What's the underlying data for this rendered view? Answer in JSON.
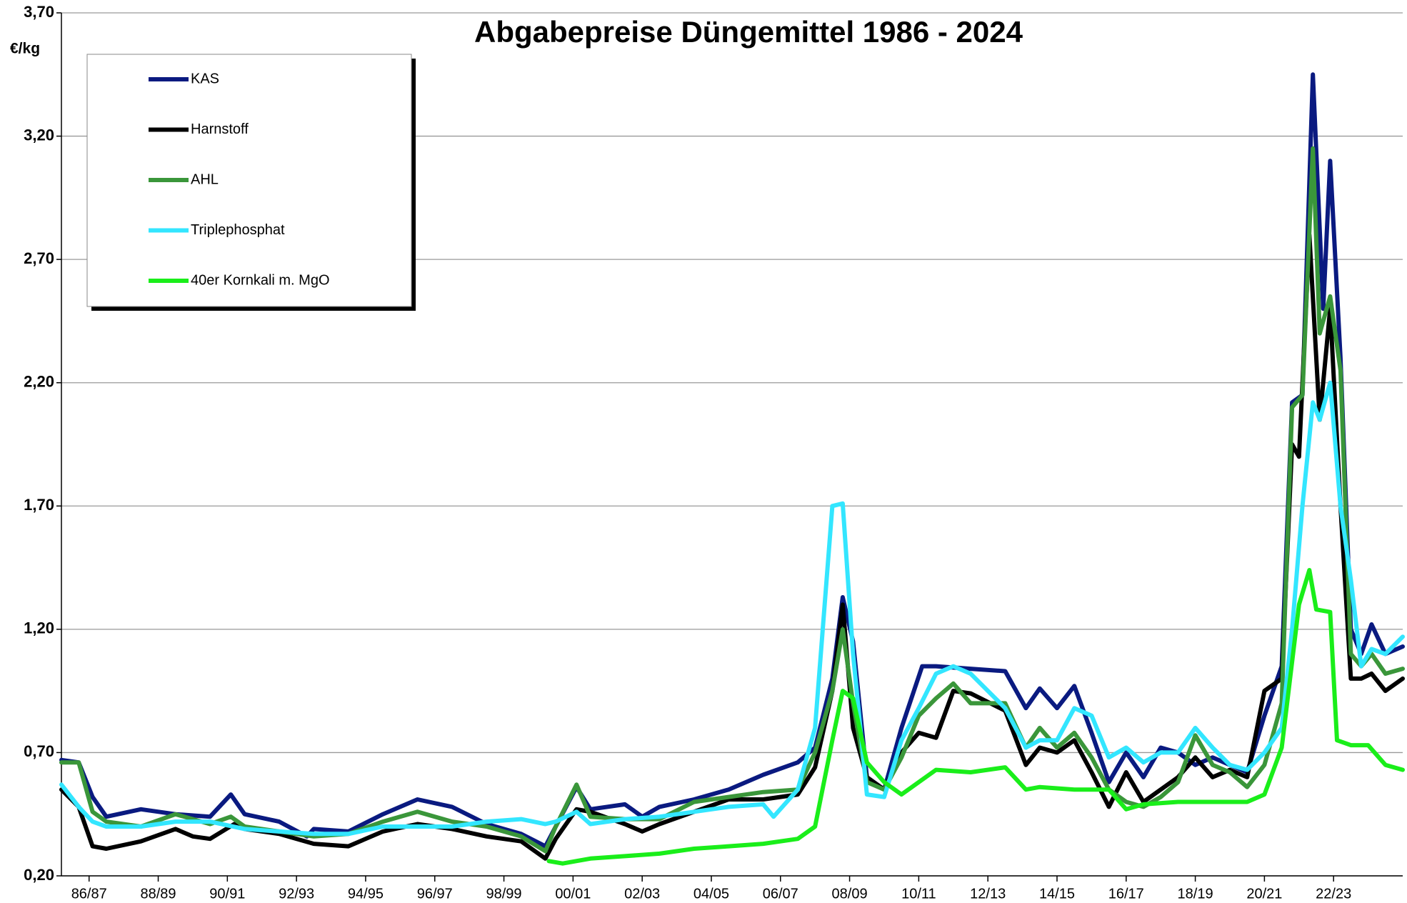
{
  "chart_data": {
    "type": "line",
    "title": "Abgabepreise Düngemittel 1986 - 2024",
    "y_label": "€/kg",
    "xlim": [
      1985.7,
      2024.5
    ],
    "ylim": [
      0.2,
      3.7
    ],
    "yticks": [
      {
        "value": 0.2,
        "label": "0,20"
      },
      {
        "value": 0.7,
        "label": "0,70"
      },
      {
        "value": 1.2,
        "label": "1,20"
      },
      {
        "value": 1.7,
        "label": "1,70"
      },
      {
        "value": 2.2,
        "label": "2,20"
      },
      {
        "value": 2.7,
        "label": "2,70"
      },
      {
        "value": 3.2,
        "label": "3,20"
      },
      {
        "value": 3.7,
        "label": "3,70"
      }
    ],
    "xticks": [
      {
        "value": 1986.5,
        "label": "86/87"
      },
      {
        "value": 1988.5,
        "label": "88/89"
      },
      {
        "value": 1990.5,
        "label": "90/91"
      },
      {
        "value": 1992.5,
        "label": "92/93"
      },
      {
        "value": 1994.5,
        "label": "94/95"
      },
      {
        "value": 1996.5,
        "label": "96/97"
      },
      {
        "value": 1998.5,
        "label": "98/99"
      },
      {
        "value": 2000.5,
        "label": "00/01"
      },
      {
        "value": 2002.5,
        "label": "02/03"
      },
      {
        "value": 2004.5,
        "label": "04/05"
      },
      {
        "value": 2006.5,
        "label": "06/07"
      },
      {
        "value": 2008.5,
        "label": "08/09"
      },
      {
        "value": 2010.5,
        "label": "10/11"
      },
      {
        "value": 2012.5,
        "label": "12/13"
      },
      {
        "value": 2014.5,
        "label": "14/15"
      },
      {
        "value": 2016.5,
        "label": "16/17"
      },
      {
        "value": 2018.5,
        "label": "18/19"
      },
      {
        "value": 2020.5,
        "label": "20/21"
      },
      {
        "value": 2022.5,
        "label": "22/23"
      }
    ],
    "grid": true,
    "legend": "upper left",
    "series": [
      {
        "name": "KAS",
        "color": "#0a1a80",
        "x": [
          1985.7,
          1986.2,
          1986.6,
          1987,
          1988,
          1989,
          1990,
          1990.6,
          1991,
          1992,
          1992.8,
          1993,
          1994,
          1995,
          1996,
          1997,
          1998,
          1999,
          1999.7,
          2000,
          2000.6,
          2001,
          2002,
          2002.5,
          2003,
          2004,
          2005,
          2006,
          2007,
          2007.5,
          2008,
          2008.3,
          2008.6,
          2009,
          2009.5,
          2010,
          2010.6,
          2011,
          2012,
          2013,
          2013.6,
          2014,
          2014.5,
          2015,
          2015.5,
          2016,
          2016.5,
          2017,
          2017.5,
          2018,
          2018.5,
          2019,
          2019.5,
          2020,
          2020.5,
          2021,
          2021.3,
          2021.6,
          2021.9,
          2022.2,
          2022.4,
          2022.7,
          2023,
          2023.3,
          2023.6,
          2024,
          2024.5
        ],
        "values": [
          0.67,
          0.66,
          0.52,
          0.44,
          0.47,
          0.45,
          0.44,
          0.53,
          0.45,
          0.42,
          0.36,
          0.39,
          0.38,
          0.45,
          0.51,
          0.48,
          0.41,
          0.37,
          0.32,
          0.4,
          0.56,
          0.47,
          0.49,
          0.44,
          0.48,
          0.51,
          0.55,
          0.61,
          0.66,
          0.72,
          1.0,
          1.33,
          1.15,
          0.6,
          0.55,
          0.8,
          1.05,
          1.05,
          1.04,
          1.03,
          0.88,
          0.96,
          0.88,
          0.97,
          0.78,
          0.58,
          0.7,
          0.6,
          0.72,
          0.7,
          0.65,
          0.68,
          0.65,
          0.62,
          0.85,
          1.05,
          2.12,
          2.15,
          3.45,
          2.5,
          3.1,
          2.3,
          1.2,
          1.1,
          1.22,
          1.1,
          1.13
        ]
      },
      {
        "name": "Harnstoff",
        "color": "#000000",
        "x": [
          1985.7,
          1986.2,
          1986.6,
          1987,
          1988,
          1989,
          1989.5,
          1990,
          1990.7,
          1991,
          1992,
          1993,
          1994,
          1995,
          1996,
          1997,
          1998,
          1999,
          1999.7,
          2000,
          2000.6,
          2001,
          2002,
          2002.5,
          2003,
          2004,
          2005,
          2006,
          2007,
          2007.5,
          2008,
          2008.3,
          2008.6,
          2009,
          2009.5,
          2010,
          2010.5,
          2011,
          2011.5,
          2012,
          2013,
          2013.6,
          2014,
          2014.5,
          2015,
          2015.5,
          2016,
          2016.5,
          2017,
          2017.5,
          2018,
          2018.5,
          2019,
          2019.5,
          2020,
          2020.5,
          2021,
          2021.3,
          2021.5,
          2021.8,
          2022.1,
          2022.4,
          2022.7,
          2023,
          2023.3,
          2023.6,
          2024,
          2024.5
        ],
        "values": [
          0.55,
          0.48,
          0.32,
          0.31,
          0.34,
          0.39,
          0.36,
          0.35,
          0.41,
          0.39,
          0.37,
          0.33,
          0.32,
          0.38,
          0.41,
          0.39,
          0.36,
          0.34,
          0.27,
          0.35,
          0.47,
          0.46,
          0.41,
          0.38,
          0.41,
          0.46,
          0.51,
          0.51,
          0.53,
          0.64,
          0.95,
          1.3,
          0.8,
          0.6,
          0.55,
          0.7,
          0.78,
          0.76,
          0.95,
          0.94,
          0.87,
          0.65,
          0.72,
          0.7,
          0.75,
          0.62,
          0.48,
          0.62,
          0.5,
          0.55,
          0.6,
          0.68,
          0.6,
          0.63,
          0.6,
          0.95,
          1.0,
          1.95,
          1.9,
          2.8,
          2.05,
          2.5,
          1.7,
          1.0,
          1.0,
          1.02,
          0.95,
          1.0
        ]
      },
      {
        "name": "AHL",
        "color": "#3a963a",
        "x": [
          1985.7,
          1986.2,
          1986.6,
          1987,
          1988,
          1989,
          1990,
          1990.6,
          1991,
          1992,
          1993,
          1994,
          1995,
          1996,
          1997,
          1998,
          1999,
          1999.7,
          2000,
          2000.6,
          2001,
          2002,
          2003,
          2004,
          2005,
          2006,
          2007,
          2007.5,
          2008,
          2008.3,
          2008.6,
          2009,
          2009.5,
          2010,
          2010.5,
          2011,
          2011.5,
          2012,
          2013,
          2013.6,
          2014,
          2014.5,
          2015,
          2015.5,
          2016,
          2016.5,
          2017,
          2017.5,
          2018,
          2018.5,
          2019,
          2019.5,
          2020,
          2020.5,
          2021,
          2021.3,
          2021.6,
          2021.9,
          2022.1,
          2022.4,
          2022.7,
          2023,
          2023.3,
          2023.6,
          2024,
          2024.5
        ],
        "values": [
          0.66,
          0.66,
          0.46,
          0.42,
          0.4,
          0.45,
          0.41,
          0.44,
          0.4,
          0.38,
          0.36,
          0.37,
          0.42,
          0.46,
          0.42,
          0.4,
          0.36,
          0.3,
          0.4,
          0.57,
          0.44,
          0.43,
          0.43,
          0.5,
          0.52,
          0.54,
          0.55,
          0.7,
          0.95,
          1.2,
          0.9,
          0.58,
          0.55,
          0.68,
          0.85,
          0.92,
          0.98,
          0.9,
          0.9,
          0.72,
          0.8,
          0.72,
          0.78,
          0.68,
          0.55,
          0.5,
          0.48,
          0.52,
          0.58,
          0.77,
          0.65,
          0.62,
          0.56,
          0.65,
          0.9,
          2.1,
          2.15,
          3.15,
          2.4,
          2.55,
          2.25,
          1.1,
          1.05,
          1.1,
          1.02,
          1.04
        ]
      },
      {
        "name": "Triplephosphat",
        "color": "#33e6ff",
        "x": [
          1985.7,
          1986.2,
          1986.6,
          1987,
          1988,
          1989,
          1990,
          1991,
          1992,
          1993,
          1994,
          1995,
          1996,
          1997,
          1998,
          1999,
          1999.7,
          2000,
          2000.6,
          2001,
          2002,
          2003,
          2004,
          2005,
          2006,
          2006.3,
          2007,
          2007.5,
          2008,
          2008.3,
          2008.6,
          2009,
          2009.5,
          2010,
          2010.5,
          2011,
          2011.5,
          2012,
          2013,
          2013.6,
          2014,
          2014.5,
          2015,
          2015.5,
          2016,
          2016.5,
          2017,
          2017.5,
          2018,
          2018.5,
          2019,
          2019.5,
          2020,
          2020.5,
          2021,
          2021.3,
          2021.6,
          2021.9,
          2022.1,
          2022.4,
          2022.7,
          2023,
          2023.3,
          2023.6,
          2024,
          2024.5
        ],
        "values": [
          0.57,
          0.48,
          0.42,
          0.4,
          0.4,
          0.42,
          0.42,
          0.39,
          0.38,
          0.37,
          0.37,
          0.4,
          0.4,
          0.4,
          0.42,
          0.43,
          0.41,
          0.42,
          0.46,
          0.41,
          0.43,
          0.44,
          0.46,
          0.48,
          0.49,
          0.44,
          0.55,
          0.8,
          1.7,
          1.71,
          1.1,
          0.53,
          0.52,
          0.75,
          0.88,
          1.02,
          1.05,
          1.02,
          0.88,
          0.72,
          0.75,
          0.75,
          0.88,
          0.85,
          0.68,
          0.72,
          0.66,
          0.7,
          0.7,
          0.8,
          0.72,
          0.65,
          0.63,
          0.7,
          0.8,
          1.2,
          1.7,
          2.12,
          2.05,
          2.2,
          1.7,
          1.4,
          1.05,
          1.12,
          1.1,
          1.17
        ]
      },
      {
        "name": "40er Kornkali m. MgO",
        "color": "#1aee1a",
        "x": [
          1999.8,
          2000.2,
          2001,
          2002,
          2003,
          2004,
          2005,
          2006,
          2007,
          2007.5,
          2008,
          2008.3,
          2008.6,
          2009,
          2009.5,
          2010,
          2010.5,
          2011,
          2012,
          2013,
          2013.6,
          2014,
          2015,
          2016,
          2016.5,
          2017,
          2018,
          2019,
          2020,
          2020.5,
          2021,
          2021.5,
          2021.8,
          2022,
          2022.4,
          2022.6,
          2023,
          2023.5,
          2024,
          2024.5
        ],
        "values": [
          0.26,
          0.25,
          0.27,
          0.28,
          0.29,
          0.31,
          0.32,
          0.33,
          0.35,
          0.4,
          0.75,
          0.95,
          0.92,
          0.66,
          0.58,
          0.53,
          0.58,
          0.63,
          0.62,
          0.64,
          0.55,
          0.56,
          0.55,
          0.55,
          0.47,
          0.49,
          0.5,
          0.5,
          0.5,
          0.53,
          0.72,
          1.3,
          1.44,
          1.28,
          1.27,
          0.75,
          0.73,
          0.73,
          0.65,
          0.63
        ]
      }
    ]
  }
}
